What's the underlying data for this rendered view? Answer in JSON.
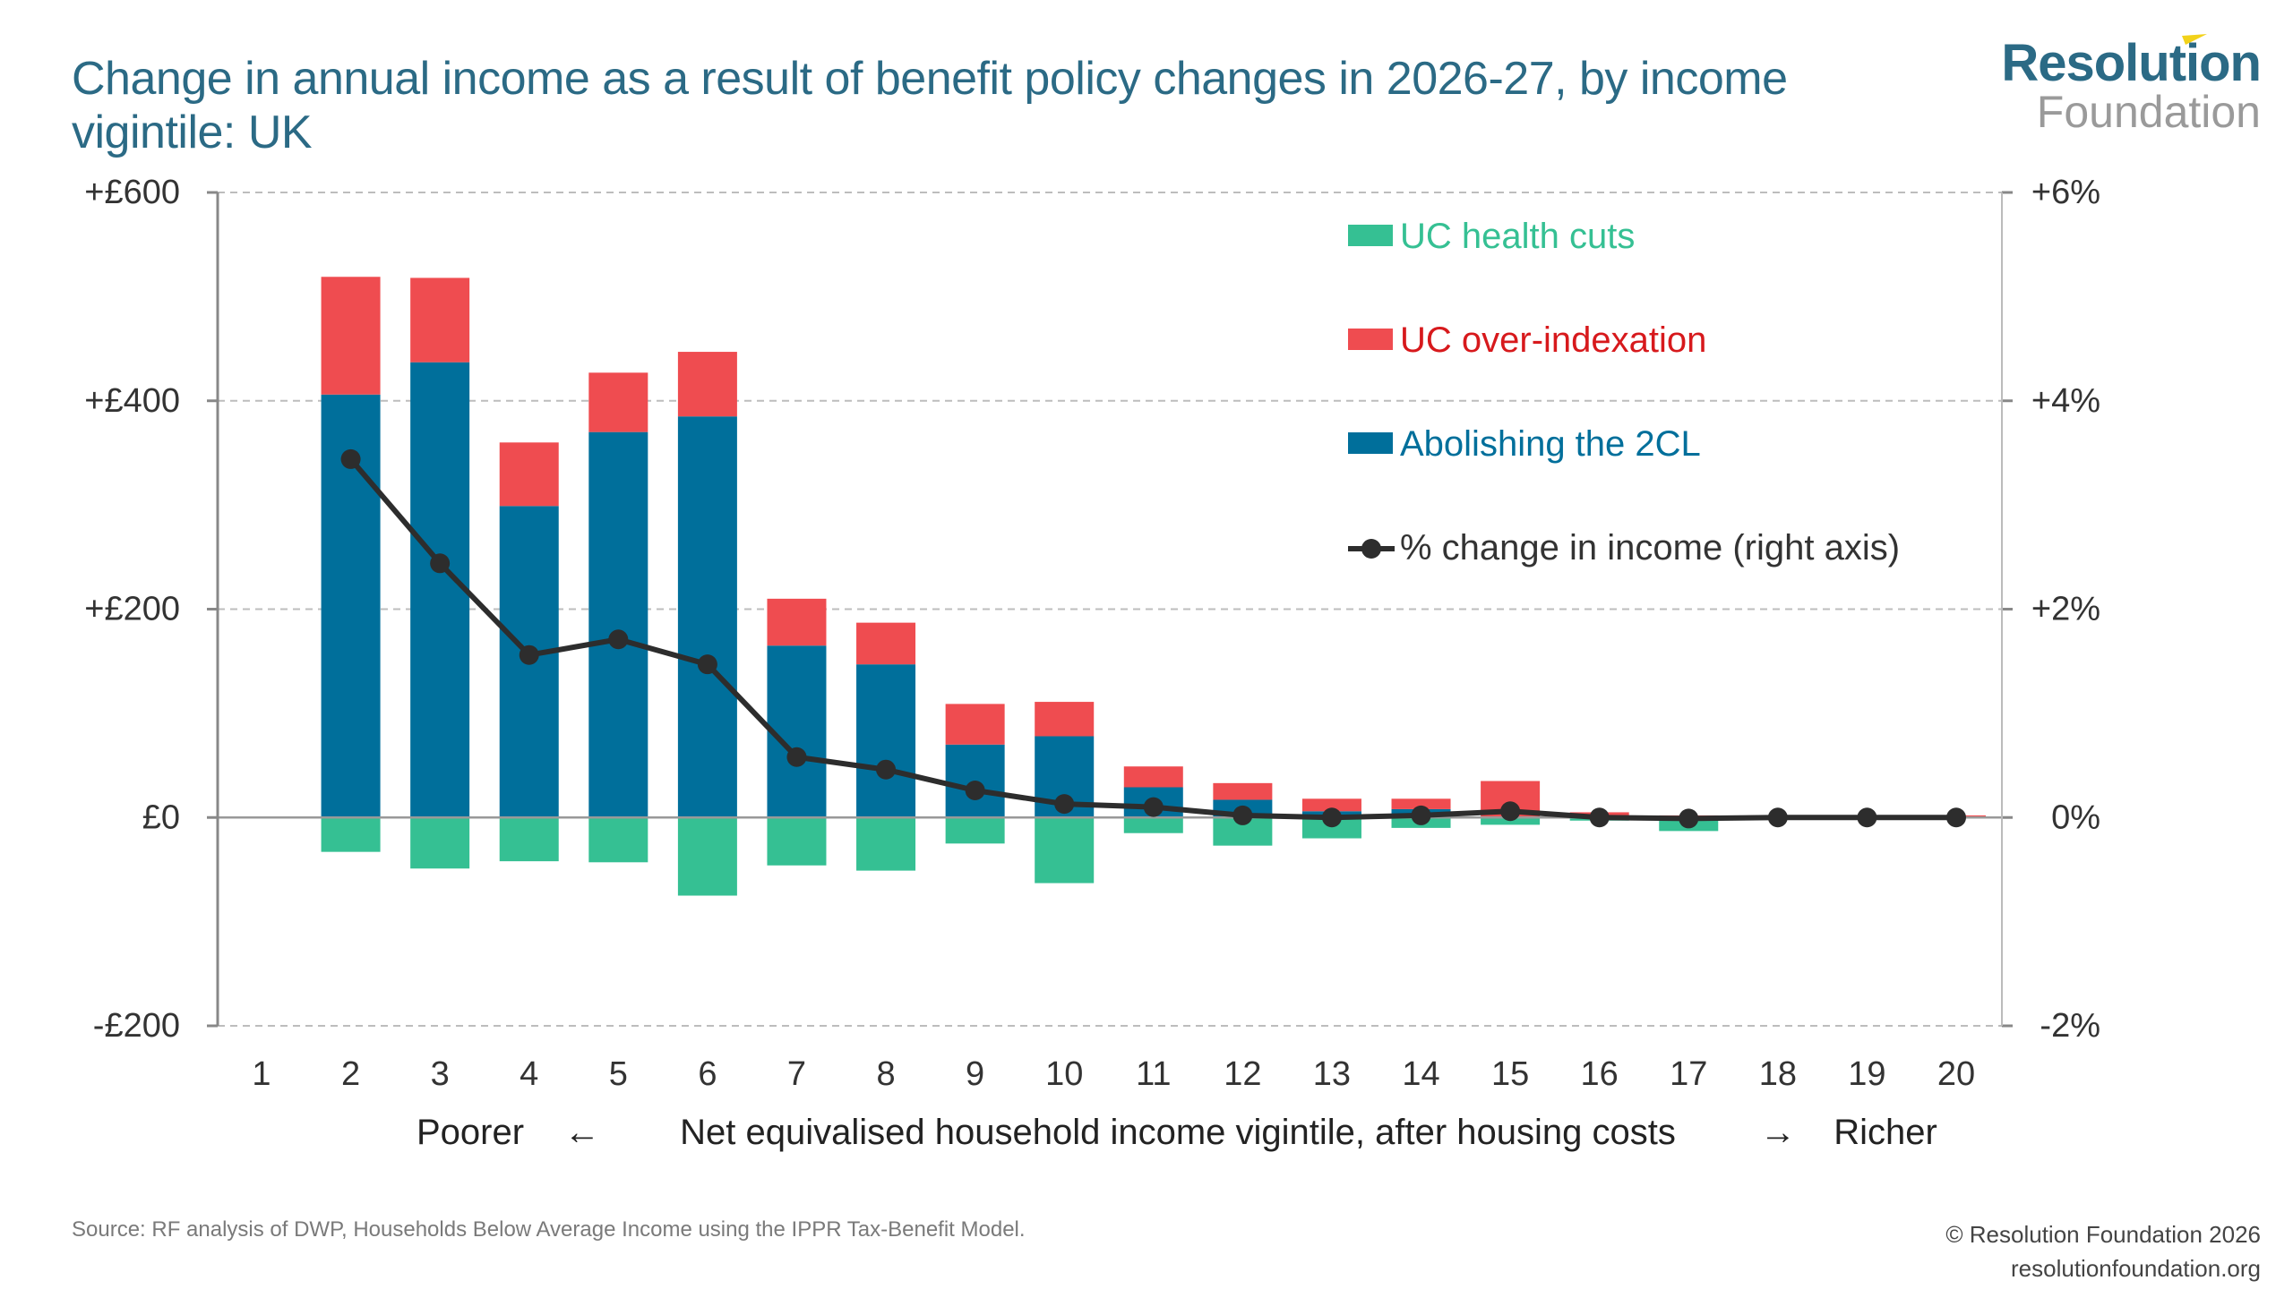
{
  "header": {
    "title": "Change in annual income as a result of benefit policy changes in 2026-27, by income vigintile: UK"
  },
  "logo": {
    "line1": "Resolution",
    "line2": "Foundation",
    "colors": {
      "primary": "#2b6a85",
      "secondary": "#9a9a9a",
      "accent": "#f2d21a"
    }
  },
  "footer": {
    "source": "Source: RF analysis of DWP, Households Below Average Income using the IPPR Tax-Benefit Model.",
    "copyright": "© Resolution Foundation 2026",
    "website": "resolutionfoundation.org"
  },
  "chart_data": {
    "type": "bar",
    "stacked": true,
    "title": "Change in annual income as a result of benefit policy changes in 2026-27, by income vigintile: UK",
    "xlabel": "Net equivalised household income vigintile, after housing costs",
    "xlabel_left": "Poorer",
    "xlabel_left_arrow": "←",
    "xlabel_right": "Richer",
    "xlabel_right_arrow": "→",
    "categories": [
      "1",
      "2",
      "3",
      "4",
      "5",
      "6",
      "7",
      "8",
      "9",
      "10",
      "11",
      "12",
      "13",
      "14",
      "15",
      "16",
      "17",
      "18",
      "19",
      "20"
    ],
    "ylim": [
      -200,
      600
    ],
    "yticks": [
      -200,
      0,
      200,
      400,
      600
    ],
    "ytick_labels": [
      "-£200",
      "£0",
      "+£200",
      "+£400",
      "+£600"
    ],
    "y2lim": [
      -2,
      6
    ],
    "y2ticks": [
      -2,
      0,
      2,
      4,
      6
    ],
    "y2tick_labels": [
      "-2%",
      "0%",
      "+2%",
      "+4%",
      "+6%"
    ],
    "grid": true,
    "legend_position": "top-right",
    "series": [
      {
        "name": "Abolishing the 2CL",
        "kind": "bar",
        "color": "#006f9b",
        "values": [
          0,
          406,
          437,
          299,
          370,
          385,
          165,
          147,
          70,
          78,
          29,
          17,
          6,
          8,
          0,
          0,
          0,
          0,
          0,
          0
        ]
      },
      {
        "name": "UC over-indexation",
        "kind": "bar",
        "color": "#ef4c50",
        "text_color": "#d7191c",
        "values": [
          0,
          113,
          81,
          61,
          57,
          62,
          45,
          40,
          39,
          33,
          20,
          16,
          12,
          10,
          35,
          5,
          2,
          2,
          0,
          2
        ]
      },
      {
        "name": "UC health cuts",
        "kind": "bar",
        "color": "#35c093",
        "values": [
          0,
          -33,
          -49,
          -42,
          -43,
          -75,
          -46,
          -51,
          -25,
          -63,
          -15,
          -27,
          -20,
          -10,
          -7,
          -3,
          -13,
          0,
          0,
          0
        ]
      },
      {
        "name": "% change in income (right axis)",
        "kind": "line",
        "axis": "right",
        "color": "#2d2d2d",
        "values": [
          null,
          3.44,
          2.44,
          1.56,
          1.71,
          1.47,
          0.58,
          0.46,
          0.26,
          0.13,
          0.1,
          0.02,
          0.0,
          0.02,
          0.06,
          0.0,
          -0.01,
          0.0,
          0.0,
          0.0
        ]
      }
    ],
    "legend": [
      {
        "label": "UC health cuts",
        "color": "#35c093",
        "text_color": "#35c093",
        "marker": "square"
      },
      {
        "label": "UC over-indexation",
        "color": "#ef4c50",
        "text_color": "#d7191c",
        "marker": "square"
      },
      {
        "label": "Abolishing the 2CL",
        "color": "#006f9b",
        "text_color": "#006f9b",
        "marker": "square"
      },
      {
        "label": "% change in income (right axis)",
        "color": "#2d2d2d",
        "text_color": "#333333",
        "marker": "line-dot"
      }
    ]
  }
}
